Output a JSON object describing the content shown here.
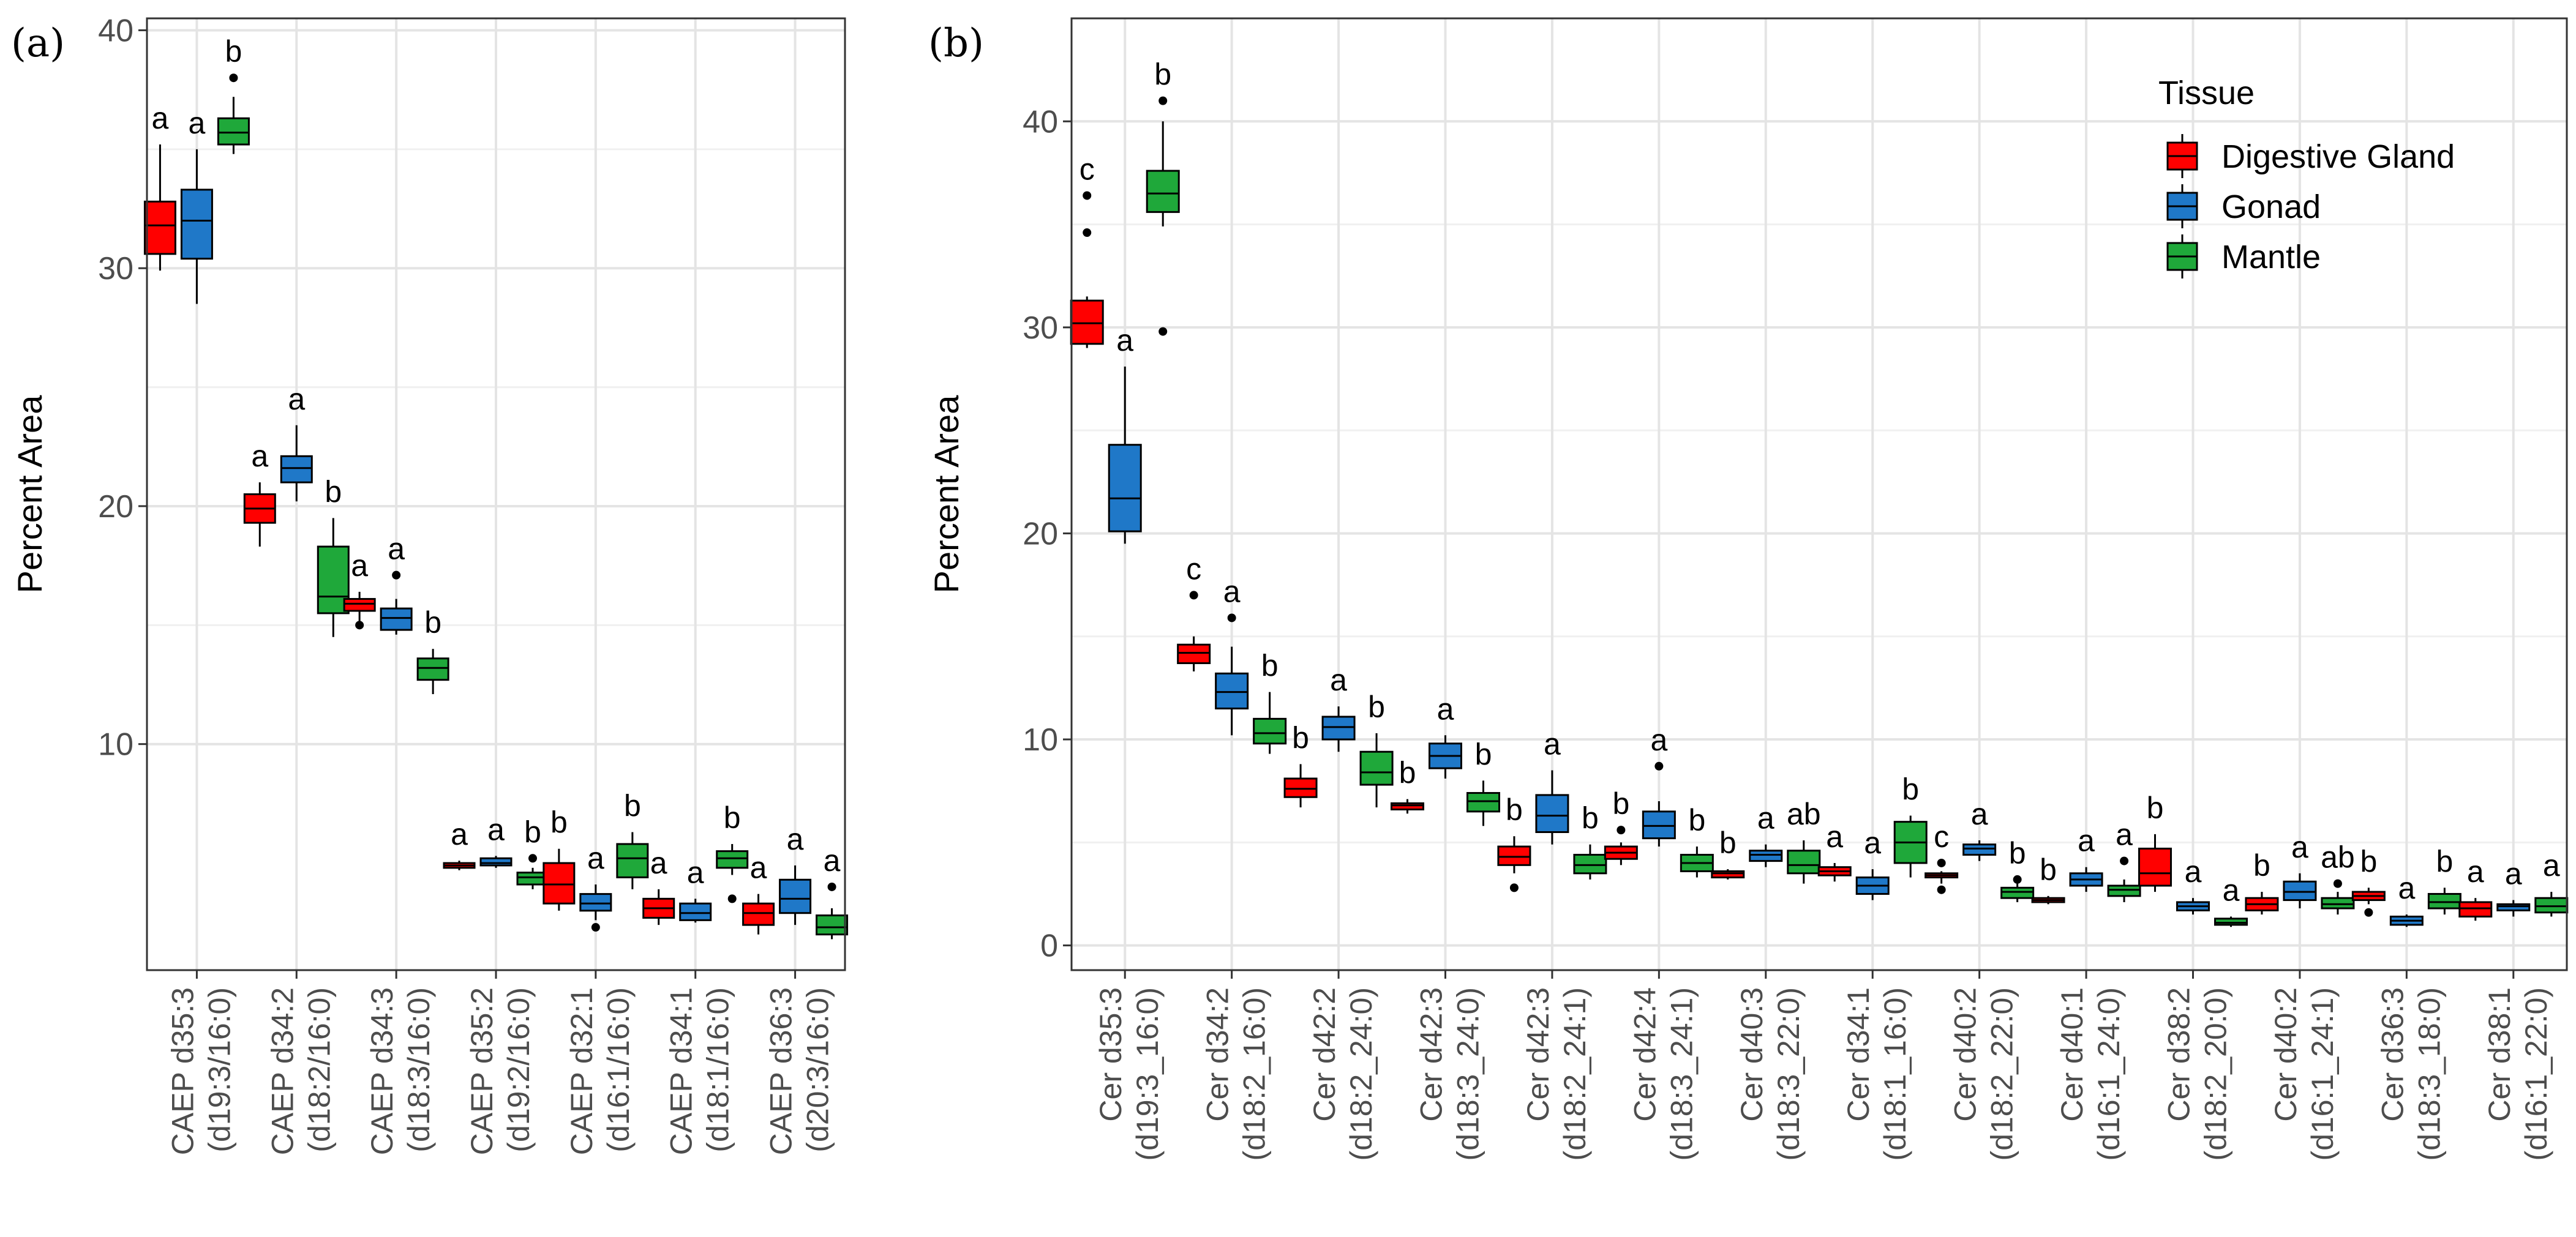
{
  "figure": {
    "legend": {
      "title": "Tissue",
      "position": "top-right",
      "entries": [
        {
          "name": "Digestive Gland",
          "color": "#ff0000"
        },
        {
          "name": "Gonad",
          "color": "#1f78c8"
        },
        {
          "name": "Mantle",
          "color": "#1fa83a"
        }
      ]
    }
  },
  "chart_data": [
    {
      "type": "boxplot",
      "panel_label": "(a)",
      "ylabel": "Percent Area",
      "ylim": [
        0.5,
        40.5
      ],
      "yticks": [
        10,
        20,
        30,
        40
      ],
      "grid": true,
      "series": [
        "Digestive Gland",
        "Gonad",
        "Mantle"
      ],
      "categories": [
        {
          "line1": "CAEP d35:3",
          "line2": "(d19:3/16:0)",
          "boxes": [
            {
              "q1": 30.6,
              "median": 31.8,
              "q3": 32.8,
              "lo": 29.9,
              "hi": 35.2,
              "outliers": [],
              "label": "a"
            },
            {
              "q1": 30.4,
              "median": 32.0,
              "q3": 33.3,
              "lo": 28.5,
              "hi": 35.0,
              "outliers": [],
              "label": "a"
            },
            {
              "q1": 35.2,
              "median": 35.7,
              "q3": 36.3,
              "lo": 34.8,
              "hi": 37.2,
              "outliers": [
                38.0
              ],
              "label": "b"
            }
          ]
        },
        {
          "line1": "CAEP d34:2",
          "line2": "(d18:2/16:0)",
          "boxes": [
            {
              "q1": 19.3,
              "median": 19.9,
              "q3": 20.5,
              "lo": 18.3,
              "hi": 21.0,
              "outliers": [],
              "label": "a"
            },
            {
              "q1": 21.0,
              "median": 21.6,
              "q3": 22.1,
              "lo": 20.2,
              "hi": 23.4,
              "outliers": [],
              "label": "a"
            },
            {
              "q1": 15.5,
              "median": 16.2,
              "q3": 18.3,
              "lo": 14.5,
              "hi": 19.5,
              "outliers": [],
              "label": "b"
            }
          ]
        },
        {
          "line1": "CAEP d34:3",
          "line2": "(d18:3/16:0)",
          "boxes": [
            {
              "q1": 15.6,
              "median": 15.9,
              "q3": 16.1,
              "lo": 15.1,
              "hi": 16.4,
              "outliers": [
                15.0
              ],
              "label": "a"
            },
            {
              "q1": 14.8,
              "median": 15.3,
              "q3": 15.7,
              "lo": 14.6,
              "hi": 16.1,
              "outliers": [
                17.1
              ],
              "label": "a"
            },
            {
              "q1": 12.7,
              "median": 13.2,
              "q3": 13.6,
              "lo": 12.1,
              "hi": 14.0,
              "outliers": [],
              "label": "b"
            }
          ]
        },
        {
          "line1": "CAEP d35:2",
          "line2": "(d19:2/16:0)",
          "boxes": [
            {
              "q1": 4.8,
              "median": 4.9,
              "q3": 5.0,
              "lo": 4.7,
              "hi": 5.1,
              "outliers": [],
              "label": "a"
            },
            {
              "q1": 4.9,
              "median": 5.0,
              "q3": 5.2,
              "lo": 4.8,
              "hi": 5.3,
              "outliers": [],
              "label": "a"
            },
            {
              "q1": 4.1,
              "median": 4.4,
              "q3": 4.6,
              "lo": 3.9,
              "hi": 4.8,
              "outliers": [
                5.2
              ],
              "label": "b"
            }
          ]
        },
        {
          "line1": "CAEP d32:1",
          "line2": "(d16:1/16:0)",
          "boxes": [
            {
              "q1": 3.3,
              "median": 4.1,
              "q3": 5.0,
              "lo": 3.0,
              "hi": 5.6,
              "outliers": [],
              "label": "b"
            },
            {
              "q1": 3.0,
              "median": 3.3,
              "q3": 3.7,
              "lo": 2.6,
              "hi": 4.1,
              "outliers": [
                2.3
              ],
              "label": "a"
            },
            {
              "q1": 4.4,
              "median": 5.2,
              "q3": 5.8,
              "lo": 3.9,
              "hi": 6.3,
              "outliers": [],
              "label": "b"
            }
          ]
        },
        {
          "line1": "CAEP d34:1",
          "line2": "(d18:1/16:0)",
          "boxes": [
            {
              "q1": 2.7,
              "median": 3.1,
              "q3": 3.5,
              "lo": 2.4,
              "hi": 3.9,
              "outliers": [],
              "label": "a"
            },
            {
              "q1": 2.6,
              "median": 2.9,
              "q3": 3.3,
              "lo": 2.5,
              "hi": 3.5,
              "outliers": [],
              "label": "a"
            },
            {
              "q1": 4.8,
              "median": 5.2,
              "q3": 5.5,
              "lo": 4.5,
              "hi": 5.8,
              "outliers": [
                3.5
              ],
              "label": "b"
            }
          ]
        },
        {
          "line1": "CAEP d36:3",
          "line2": "(d20:3/16:0)",
          "boxes": [
            {
              "q1": 2.4,
              "median": 2.9,
              "q3": 3.3,
              "lo": 2.0,
              "hi": 3.7,
              "outliers": [],
              "label": "a"
            },
            {
              "q1": 2.9,
              "median": 3.5,
              "q3": 4.3,
              "lo": 2.4,
              "hi": 4.9,
              "outliers": [],
              "label": "a"
            },
            {
              "q1": 2.0,
              "median": 2.3,
              "q3": 2.8,
              "lo": 1.8,
              "hi": 3.1,
              "outliers": [
                4.0
              ],
              "label": "a"
            }
          ]
        }
      ]
    },
    {
      "type": "boxplot",
      "panel_label": "(b)",
      "ylabel": "Percent Area",
      "ylim": [
        -1.2,
        45
      ],
      "yticks": [
        0,
        10,
        20,
        30,
        40
      ],
      "grid": true,
      "series": [
        "Digestive Gland",
        "Gonad",
        "Mantle"
      ],
      "categories": [
        {
          "line1": "Cer d35:3",
          "line2": "(d19:3_16:0)",
          "boxes": [
            {
              "q1": 29.2,
              "median": 30.2,
              "q3": 31.3,
              "lo": 29.0,
              "hi": 31.5,
              "outliers": [
                36.4,
                34.6
              ],
              "label": "c"
            },
            {
              "q1": 20.1,
              "median": 21.7,
              "q3": 24.3,
              "lo": 19.5,
              "hi": 28.1,
              "outliers": [],
              "label": "a"
            },
            {
              "q1": 35.6,
              "median": 36.5,
              "q3": 37.6,
              "lo": 34.9,
              "hi": 40.0,
              "outliers": [
                41.0,
                29.8
              ],
              "label": "b"
            }
          ]
        },
        {
          "line1": "Cer d34:2",
          "line2": "(d18:2_16:0)",
          "boxes": [
            {
              "q1": 13.7,
              "median": 14.2,
              "q3": 14.6,
              "lo": 13.3,
              "hi": 15.0,
              "outliers": [
                17.0
              ],
              "label": "c"
            },
            {
              "q1": 11.5,
              "median": 12.3,
              "q3": 13.2,
              "lo": 10.2,
              "hi": 14.5,
              "outliers": [
                15.9
              ],
              "label": "a"
            },
            {
              "q1": 9.8,
              "median": 10.3,
              "q3": 11.0,
              "lo": 9.3,
              "hi": 12.3,
              "outliers": [],
              "label": "b"
            }
          ]
        },
        {
          "line1": "Cer d42:2",
          "line2": "(d18:2_24:0)",
          "boxes": [
            {
              "q1": 7.2,
              "median": 7.6,
              "q3": 8.1,
              "lo": 6.7,
              "hi": 8.8,
              "outliers": [],
              "label": "b"
            },
            {
              "q1": 10.0,
              "median": 10.6,
              "q3": 11.1,
              "lo": 9.4,
              "hi": 11.6,
              "outliers": [],
              "label": "a"
            },
            {
              "q1": 7.8,
              "median": 8.4,
              "q3": 9.4,
              "lo": 6.7,
              "hi": 10.3,
              "outliers": [],
              "label": "b"
            }
          ]
        },
        {
          "line1": "Cer d42:3",
          "line2": "(d18:3_24:0)",
          "boxes": [
            {
              "q1": 6.6,
              "median": 6.8,
              "q3": 6.9,
              "lo": 6.4,
              "hi": 7.1,
              "outliers": [],
              "label": "b"
            },
            {
              "q1": 8.6,
              "median": 9.2,
              "q3": 9.8,
              "lo": 8.1,
              "hi": 10.2,
              "outliers": [],
              "label": "a"
            },
            {
              "q1": 6.5,
              "median": 7.0,
              "q3": 7.4,
              "lo": 5.8,
              "hi": 8.0,
              "outliers": [],
              "label": "b"
            }
          ]
        },
        {
          "line1": "Cer d42:3",
          "line2": "(d18:2_24:1)",
          "boxes": [
            {
              "q1": 3.9,
              "median": 4.3,
              "q3": 4.8,
              "lo": 3.5,
              "hi": 5.3,
              "outliers": [
                2.8
              ],
              "label": "b"
            },
            {
              "q1": 5.5,
              "median": 6.3,
              "q3": 7.3,
              "lo": 4.9,
              "hi": 8.5,
              "outliers": [],
              "label": "a"
            },
            {
              "q1": 3.5,
              "median": 3.9,
              "q3": 4.4,
              "lo": 3.2,
              "hi": 4.9,
              "outliers": [],
              "label": "b"
            }
          ]
        },
        {
          "line1": "Cer d42:4",
          "line2": "(d18:3_24:1)",
          "boxes": [
            {
              "q1": 4.2,
              "median": 4.5,
              "q3": 4.8,
              "lo": 3.9,
              "hi": 5.0,
              "outliers": [
                5.6
              ],
              "label": "b"
            },
            {
              "q1": 5.2,
              "median": 5.8,
              "q3": 6.5,
              "lo": 4.8,
              "hi": 7.0,
              "outliers": [
                8.7
              ],
              "label": "a"
            },
            {
              "q1": 3.6,
              "median": 4.0,
              "q3": 4.4,
              "lo": 3.3,
              "hi": 4.8,
              "outliers": [],
              "label": "b"
            }
          ]
        },
        {
          "line1": "Cer d40:3",
          "line2": "(d18:3_22:0)",
          "boxes": [
            {
              "q1": 3.3,
              "median": 3.5,
              "q3": 3.6,
              "lo": 3.2,
              "hi": 3.7,
              "outliers": [],
              "label": "b"
            },
            {
              "q1": 4.1,
              "median": 4.4,
              "q3": 4.6,
              "lo": 3.8,
              "hi": 4.9,
              "outliers": [],
              "label": "a"
            },
            {
              "q1": 3.5,
              "median": 3.9,
              "q3": 4.6,
              "lo": 3.0,
              "hi": 5.1,
              "outliers": [],
              "label": "ab"
            }
          ]
        },
        {
          "line1": "Cer d34:1",
          "line2": "(d18:1_16:0)",
          "boxes": [
            {
              "q1": 3.4,
              "median": 3.6,
              "q3": 3.8,
              "lo": 3.1,
              "hi": 4.0,
              "outliers": [],
              "label": "a"
            },
            {
              "q1": 2.5,
              "median": 2.9,
              "q3": 3.3,
              "lo": 2.2,
              "hi": 3.7,
              "outliers": [],
              "label": "a"
            },
            {
              "q1": 4.0,
              "median": 5.0,
              "q3": 6.0,
              "lo": 3.3,
              "hi": 6.3,
              "outliers": [],
              "label": "b"
            }
          ]
        },
        {
          "line1": "Cer d40:2",
          "line2": "(d18:2_22:0)",
          "boxes": [
            {
              "q1": 3.3,
              "median": 3.4,
              "q3": 3.5,
              "lo": 3.0,
              "hi": 3.6,
              "outliers": [
                4.0,
                2.7
              ],
              "label": "c"
            },
            {
              "q1": 4.4,
              "median": 4.7,
              "q3": 4.9,
              "lo": 4.1,
              "hi": 5.1,
              "outliers": [],
              "label": "a"
            },
            {
              "q1": 2.3,
              "median": 2.6,
              "q3": 2.8,
              "lo": 2.1,
              "hi": 3.0,
              "outliers": [
                3.2
              ],
              "label": "b"
            }
          ]
        },
        {
          "line1": "Cer d40:1",
          "line2": "(d16:1_24:0)",
          "boxes": [
            {
              "q1": 2.1,
              "median": 2.2,
              "q3": 2.3,
              "lo": 2.0,
              "hi": 2.4,
              "outliers": [],
              "label": "b"
            },
            {
              "q1": 2.9,
              "median": 3.2,
              "q3": 3.5,
              "lo": 2.6,
              "hi": 3.8,
              "outliers": [],
              "label": "a"
            },
            {
              "q1": 2.4,
              "median": 2.7,
              "q3": 2.9,
              "lo": 2.1,
              "hi": 3.2,
              "outliers": [
                4.1
              ],
              "label": "a"
            }
          ]
        },
        {
          "line1": "Cer d38:2",
          "line2": "(d18:2_20:0)",
          "boxes": [
            {
              "q1": 2.9,
              "median": 3.5,
              "q3": 4.7,
              "lo": 2.6,
              "hi": 5.4,
              "outliers": [],
              "label": "b"
            },
            {
              "q1": 1.7,
              "median": 1.9,
              "q3": 2.1,
              "lo": 1.5,
              "hi": 2.3,
              "outliers": [],
              "label": "a"
            },
            {
              "q1": 1.0,
              "median": 1.1,
              "q3": 1.3,
              "lo": 0.9,
              "hi": 1.4,
              "outliers": [],
              "label": "a"
            }
          ]
        },
        {
          "line1": "Cer d40:2",
          "line2": "(d16:1_24:1)",
          "boxes": [
            {
              "q1": 1.7,
              "median": 2.0,
              "q3": 2.3,
              "lo": 1.5,
              "hi": 2.6,
              "outliers": [],
              "label": "b"
            },
            {
              "q1": 2.2,
              "median": 2.6,
              "q3": 3.1,
              "lo": 1.8,
              "hi": 3.5,
              "outliers": [],
              "label": "a"
            },
            {
              "q1": 1.8,
              "median": 2.0,
              "q3": 2.3,
              "lo": 1.5,
              "hi": 2.6,
              "outliers": [
                3.0
              ],
              "label": "ab"
            }
          ]
        },
        {
          "line1": "Cer d36:3",
          "line2": "(d18:3_18:0)",
          "boxes": [
            {
              "q1": 2.2,
              "median": 2.4,
              "q3": 2.6,
              "lo": 2.0,
              "hi": 2.8,
              "outliers": [
                1.6
              ],
              "label": "b"
            },
            {
              "q1": 1.0,
              "median": 1.2,
              "q3": 1.4,
              "lo": 0.9,
              "hi": 1.5,
              "outliers": [],
              "label": "a"
            },
            {
              "q1": 1.8,
              "median": 2.1,
              "q3": 2.5,
              "lo": 1.5,
              "hi": 2.8,
              "outliers": [],
              "label": "b"
            }
          ]
        },
        {
          "line1": "Cer d38:1",
          "line2": "(d16:1_22:0)",
          "boxes": [
            {
              "q1": 1.4,
              "median": 1.8,
              "q3": 2.1,
              "lo": 1.2,
              "hi": 2.3,
              "outliers": [],
              "label": "a"
            },
            {
              "q1": 1.7,
              "median": 1.9,
              "q3": 2.0,
              "lo": 1.4,
              "hi": 2.2,
              "outliers": [],
              "label": "a"
            },
            {
              "q1": 1.6,
              "median": 1.9,
              "q3": 2.3,
              "lo": 1.4,
              "hi": 2.6,
              "outliers": [],
              "label": "a"
            }
          ]
        }
      ]
    }
  ]
}
